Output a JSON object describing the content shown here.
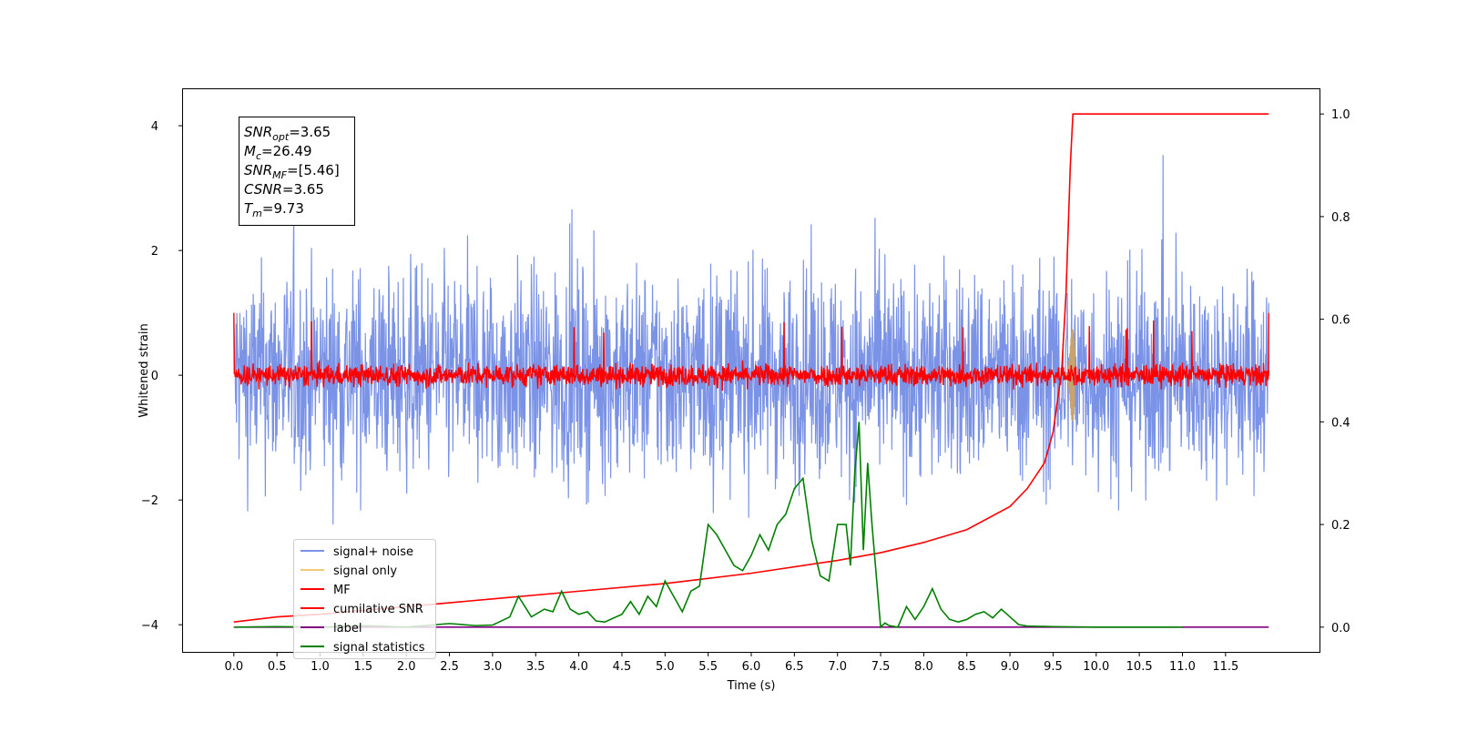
{
  "chart_data": {
    "type": "line",
    "title": "",
    "xlabel": "Time (s)",
    "ylabel": "Whitened strain",
    "y2label": "",
    "xlim": [
      -0.6,
      12.6
    ],
    "ylim": [
      -4.45,
      4.6
    ],
    "y2lim": [
      -0.05,
      1.05
    ],
    "x_ticks": [
      "0.0",
      "0.5",
      "1.0",
      "1.5",
      "2.0",
      "2.5",
      "3.0",
      "3.5",
      "4.0",
      "4.5",
      "5.0",
      "5.5",
      "6.0",
      "6.5",
      "7.0",
      "7.5",
      "8.0",
      "8.5",
      "9.0",
      "9.5",
      "10.0",
      "10.5",
      "11.0",
      "11.5"
    ],
    "y_ticks": [
      "−4",
      "−2",
      "0",
      "2",
      "4"
    ],
    "y2_ticks": [
      "0.0",
      "0.2",
      "0.4",
      "0.6",
      "0.8",
      "1.0"
    ],
    "grid": false,
    "legend_position": "lower left",
    "legend": [
      {
        "name": "signal+ noise",
        "color": "#7b93e6"
      },
      {
        "name": "signal only",
        "color": "#f5c97a"
      },
      {
        "name": "MF",
        "color": "#ff0000"
      },
      {
        "name": "cumilative SNR",
        "color": "#ff0000"
      },
      {
        "name": "label",
        "color": "#800080"
      },
      {
        "name": "signal statistics",
        "color": "#008000"
      }
    ],
    "series": [
      {
        "name": "signal+ noise",
        "axis": "left",
        "color": "#7b93e6",
        "description": "dense noise with amplitude about ±2.5, spikes to ±3.5",
        "amplitude": 2.5,
        "x_range": [
          0.0,
          12.0
        ]
      },
      {
        "name": "signal only",
        "axis": "left",
        "color": "#f5c97a",
        "description": "chirp near merger time",
        "peak_x": 9.73,
        "peak_amplitude": 0.8
      },
      {
        "name": "MF",
        "axis": "left",
        "color": "#ff0000",
        "amplitude": 0.3,
        "x_range": [
          0.0,
          12.0
        ]
      },
      {
        "name": "cumilative SNR",
        "axis": "right",
        "color": "#ff0000",
        "x": [
          0.0,
          0.5,
          1.0,
          2.0,
          3.0,
          4.0,
          5.0,
          6.0,
          7.0,
          7.5,
          8.0,
          8.5,
          9.0,
          9.2,
          9.4,
          9.5,
          9.6,
          9.65,
          9.7,
          9.73,
          10.0,
          11.0,
          12.0
        ],
        "y": [
          0.01,
          0.02,
          0.025,
          0.04,
          0.055,
          0.07,
          0.085,
          0.105,
          0.13,
          0.145,
          0.165,
          0.19,
          0.235,
          0.27,
          0.32,
          0.38,
          0.5,
          0.65,
          0.9,
          1.0,
          1.0,
          1.0,
          1.0
        ]
      },
      {
        "name": "label",
        "axis": "right",
        "color": "#800080",
        "x": [
          0.0,
          12.0
        ],
        "y": [
          0.0,
          0.0
        ]
      },
      {
        "name": "signal statistics",
        "axis": "right",
        "color": "#008000",
        "x": [
          0.0,
          0.5,
          1.0,
          1.5,
          2.0,
          2.5,
          2.8,
          3.0,
          3.2,
          3.3,
          3.45,
          3.6,
          3.7,
          3.8,
          3.9,
          4.0,
          4.1,
          4.2,
          4.3,
          4.5,
          4.6,
          4.7,
          4.8,
          4.9,
          5.0,
          5.1,
          5.2,
          5.3,
          5.4,
          5.5,
          5.6,
          5.7,
          5.8,
          5.9,
          6.0,
          6.1,
          6.2,
          6.3,
          6.4,
          6.5,
          6.6,
          6.7,
          6.8,
          6.9,
          7.0,
          7.1,
          7.15,
          7.2,
          7.25,
          7.3,
          7.35,
          7.4,
          7.5,
          7.55,
          7.6,
          7.7,
          7.8,
          7.9,
          8.0,
          8.1,
          8.2,
          8.3,
          8.4,
          8.5,
          8.6,
          8.7,
          8.8,
          8.9,
          9.0,
          9.1,
          9.2,
          9.5,
          10.0,
          11.0,
          11.0
        ],
        "y": [
          0.0,
          0.001,
          0.0,
          0.003,
          0.0,
          0.007,
          0.003,
          0.004,
          0.02,
          0.06,
          0.02,
          0.035,
          0.03,
          0.07,
          0.035,
          0.025,
          0.03,
          0.012,
          0.01,
          0.025,
          0.05,
          0.025,
          0.06,
          0.04,
          0.09,
          0.06,
          0.03,
          0.07,
          0.08,
          0.2,
          0.18,
          0.15,
          0.12,
          0.11,
          0.14,
          0.18,
          0.15,
          0.2,
          0.22,
          0.27,
          0.29,
          0.17,
          0.1,
          0.09,
          0.2,
          0.2,
          0.12,
          0.3,
          0.4,
          0.15,
          0.32,
          0.2,
          0.0,
          0.008,
          0.003,
          0.0,
          0.04,
          0.015,
          0.04,
          0.075,
          0.035,
          0.015,
          0.01,
          0.015,
          0.025,
          0.03,
          0.018,
          0.035,
          0.02,
          0.005,
          0.002,
          0.001,
          0.0,
          0.0,
          0.0
        ]
      }
    ],
    "annotation_box": [
      {
        "label": "SNR",
        "sub": "opt",
        "value": "=3.65"
      },
      {
        "label": "M",
        "sub": "c",
        "value": "=26.49"
      },
      {
        "label": "SNR",
        "sub": "MF",
        "value": "=[5.46]"
      },
      {
        "label": "CSNR",
        "sub": "",
        "value": "=3.65"
      },
      {
        "label": "T",
        "sub": "m",
        "value": "=9.73"
      }
    ]
  }
}
